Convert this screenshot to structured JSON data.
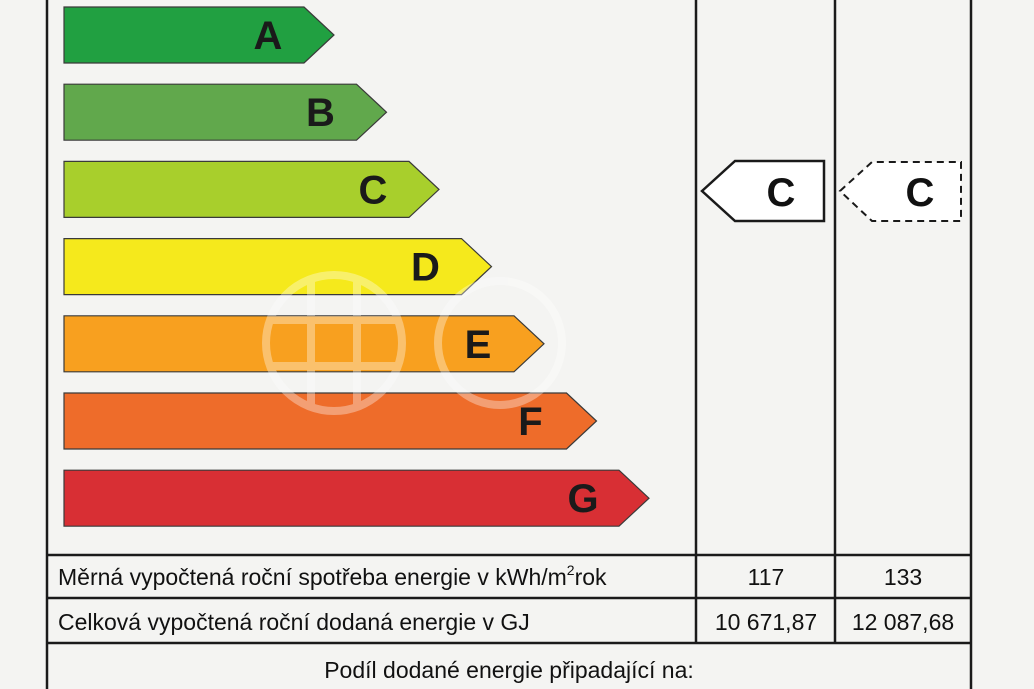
{
  "classes": [
    {
      "letter": "A",
      "color": "#21a041"
    },
    {
      "letter": "B",
      "color": "#61a84c"
    },
    {
      "letter": "C",
      "color": "#a8cf2c"
    },
    {
      "letter": "D",
      "color": "#f5e91c"
    },
    {
      "letter": "E",
      "color": "#f8a01f"
    },
    {
      "letter": "F",
      "color": "#ee6c2a"
    },
    {
      "letter": "G",
      "color": "#d82f34"
    }
  ],
  "current_rating": {
    "letter": "C",
    "border": "solid"
  },
  "reference_rating": {
    "letter": "C",
    "border": "dashed"
  },
  "table": {
    "row1": {
      "label_prefix": "Měrná vypočtená roční spotřeba energie v kWh/m",
      "label_sup": "2",
      "label_suffix": "rok",
      "current": "117",
      "reference": "133"
    },
    "row2": {
      "label": "Celková vypočtená roční dodaná energie v GJ",
      "current": "10 671,87",
      "reference": "12 087,68"
    },
    "share_heading": "Podíl dodané energie připadající na:"
  }
}
